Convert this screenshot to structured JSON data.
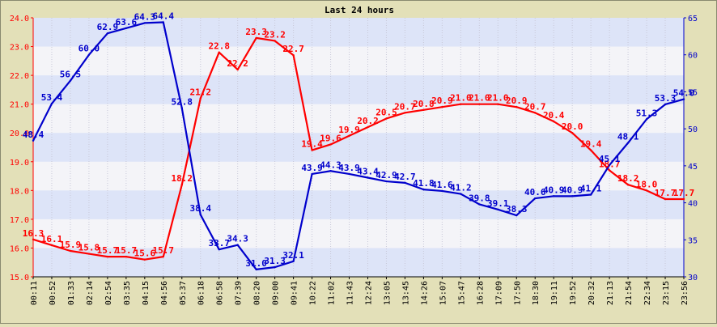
{
  "chart_data": {
    "type": "line",
    "title": "Last 24 hours",
    "xlabel": "",
    "grid": true,
    "colors": {
      "temperature": "#ff0000",
      "humidity": "#0000cc",
      "plot_bg": "#f4f4f8",
      "band": "#dde4f8",
      "outer_bg": "#e3e0b8"
    },
    "y_left": {
      "min": 15.0,
      "max": 24.0,
      "ticks": [
        "15.0",
        "16.0",
        "17.0",
        "18.0",
        "19.0",
        "20.0",
        "21.0",
        "22.0",
        "23.0",
        "24.0"
      ]
    },
    "y_right": {
      "min": 30,
      "max": 65,
      "ticks": [
        "30",
        "35",
        "40",
        "45",
        "50",
        "55",
        "60",
        "65"
      ]
    },
    "x_ticks": [
      "00:11",
      "00:52",
      "01:33",
      "02:14",
      "02:54",
      "03:35",
      "04:15",
      "04:56",
      "05:37",
      "06:18",
      "06:58",
      "07:39",
      "08:20",
      "09:00",
      "09:41",
      "10:22",
      "11:02",
      "11:43",
      "12:24",
      "13:05",
      "13:45",
      "14:26",
      "15:07",
      "15:47",
      "16:28",
      "17:09",
      "17:50",
      "18:30",
      "19:11",
      "19:52",
      "20:32",
      "21:13",
      "21:54",
      "22:34",
      "23:15",
      "23:56"
    ],
    "series": [
      {
        "axis": "left",
        "color": "#ff0000",
        "points": [
          {
            "x": "00:11",
            "y": 16.3
          },
          {
            "x": "00:52",
            "y": 16.1
          },
          {
            "x": "01:33",
            "y": 15.9
          },
          {
            "x": "02:14",
            "y": 15.8
          },
          {
            "x": "02:54",
            "y": 15.7
          },
          {
            "x": "03:35",
            "y": 15.7
          },
          {
            "x": "04:15",
            "y": 15.6
          },
          {
            "x": "04:56",
            "y": 15.7
          },
          {
            "x": "05:37",
            "y": 18.2
          },
          {
            "x": "06:18",
            "y": 21.2
          },
          {
            "x": "06:58",
            "y": 22.8
          },
          {
            "x": "07:39",
            "y": 22.2
          },
          {
            "x": "08:20",
            "y": 23.3
          },
          {
            "x": "09:00",
            "y": 23.2
          },
          {
            "x": "09:41",
            "y": 22.7
          },
          {
            "x": "10:22",
            "y": 19.4
          },
          {
            "x": "11:02",
            "y": 19.6
          },
          {
            "x": "11:43",
            "y": 19.9
          },
          {
            "x": "12:24",
            "y": 20.2
          },
          {
            "x": "13:05",
            "y": 20.5
          },
          {
            "x": "13:45",
            "y": 20.7
          },
          {
            "x": "14:26",
            "y": 20.8
          },
          {
            "x": "15:07",
            "y": 20.9
          },
          {
            "x": "15:47",
            "y": 21.0
          },
          {
            "x": "16:28",
            "y": 21.0
          },
          {
            "x": "17:09",
            "y": 21.0
          },
          {
            "x": "17:50",
            "y": 20.9
          },
          {
            "x": "18:30",
            "y": 20.7
          },
          {
            "x": "19:11",
            "y": 20.4
          },
          {
            "x": "19:52",
            "y": 20.0
          },
          {
            "x": "20:32",
            "y": 19.4
          },
          {
            "x": "21:13",
            "y": 18.7
          },
          {
            "x": "21:54",
            "y": 18.2
          },
          {
            "x": "22:34",
            "y": 18.0
          },
          {
            "x": "23:15",
            "y": 17.7
          },
          {
            "x": "23:56",
            "y": 17.7
          }
        ]
      },
      {
        "axis": "right",
        "color": "#0000cc",
        "points": [
          {
            "x": "00:11",
            "y": 48.4
          },
          {
            "x": "00:52",
            "y": 53.4
          },
          {
            "x": "01:33",
            "y": 56.5
          },
          {
            "x": "02:14",
            "y": 60.0
          },
          {
            "x": "02:54",
            "y": 62.9
          },
          {
            "x": "03:35",
            "y": 63.6
          },
          {
            "x": "04:15",
            "y": 64.3
          },
          {
            "x": "04:56",
            "y": 64.4
          },
          {
            "x": "05:37",
            "y": 52.8
          },
          {
            "x": "06:18",
            "y": 38.4
          },
          {
            "x": "06:58",
            "y": 33.7
          },
          {
            "x": "07:39",
            "y": 34.3
          },
          {
            "x": "08:20",
            "y": 31.0
          },
          {
            "x": "09:00",
            "y": 31.3
          },
          {
            "x": "09:41",
            "y": 32.1
          },
          {
            "x": "10:22",
            "y": 43.9
          },
          {
            "x": "11:02",
            "y": 44.3
          },
          {
            "x": "11:43",
            "y": 43.9
          },
          {
            "x": "12:24",
            "y": 43.4
          },
          {
            "x": "13:05",
            "y": 42.9
          },
          {
            "x": "13:45",
            "y": 42.7
          },
          {
            "x": "14:26",
            "y": 41.8
          },
          {
            "x": "15:07",
            "y": 41.6
          },
          {
            "x": "15:47",
            "y": 41.2
          },
          {
            "x": "16:28",
            "y": 39.8
          },
          {
            "x": "17:09",
            "y": 39.1
          },
          {
            "x": "17:50",
            "y": 38.3
          },
          {
            "x": "18:30",
            "y": 40.6
          },
          {
            "x": "19:11",
            "y": 40.9
          },
          {
            "x": "19:52",
            "y": 40.9
          },
          {
            "x": "20:32",
            "y": 41.1
          },
          {
            "x": "21:13",
            "y": 45.1
          },
          {
            "x": "21:54",
            "y": 48.1
          },
          {
            "x": "22:34",
            "y": 51.3
          },
          {
            "x": "23:15",
            "y": 53.3
          },
          {
            "x": "23:56",
            "y": 54.0
          }
        ]
      }
    ]
  }
}
